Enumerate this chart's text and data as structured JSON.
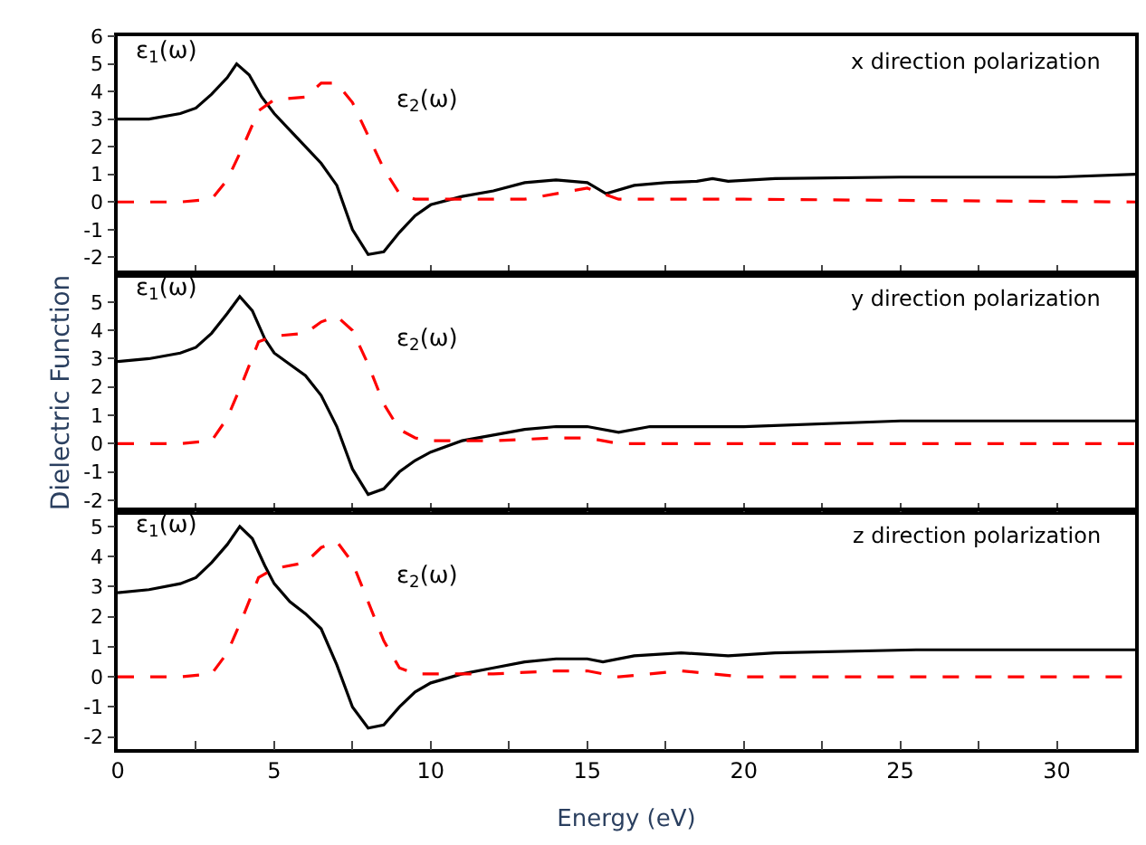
{
  "chart_data": [
    {
      "type": "line",
      "xlim": [
        0,
        32.5
      ],
      "xticks": [
        0,
        {
          "value": 2.5,
          "label": null
        },
        5,
        {
          "value": 7.5,
          "label": null
        },
        10,
        {
          "value": 12.5,
          "label": null
        },
        15,
        {
          "value": 17.5,
          "label": null
        },
        20,
        {
          "value": 22.5,
          "label": null
        },
        25,
        {
          "value": 27.5,
          "label": null
        },
        30
      ],
      "ylim": [
        -2.6,
        6
      ],
      "yticks": [
        -2,
        -1,
        0,
        1,
        2,
        3,
        4,
        5,
        6
      ],
      "tick_labels": "y",
      "grid": false,
      "marker": "none",
      "annotations": [
        "x direction polarization"
      ],
      "series": [
        {
          "name": "ε$_{1}$(ω)",
          "color": "#000000",
          "line_style": "solid",
          "x": [
            0,
            1,
            2,
            2.5,
            3,
            3.5,
            3.8,
            4.2,
            4.6,
            5,
            5.5,
            6,
            6.5,
            7,
            7.5,
            8,
            8.5,
            9,
            9.5,
            10,
            11,
            12,
            13,
            14,
            15,
            15.6,
            16.5,
            17.5,
            18.5,
            19,
            19.5,
            21,
            25,
            30,
            32.5
          ],
          "values": [
            3.0,
            3.0,
            3.2,
            3.4,
            3.9,
            4.5,
            5.0,
            4.6,
            3.8,
            3.2,
            2.6,
            2.0,
            1.4,
            0.6,
            -1.0,
            -1.9,
            -1.8,
            -1.1,
            -0.5,
            -0.1,
            0.2,
            0.4,
            0.7,
            0.8,
            0.7,
            0.3,
            0.6,
            0.7,
            0.75,
            0.85,
            0.75,
            0.85,
            0.9,
            0.9,
            1.0
          ]
        },
        {
          "name": "ε$_{2}$(ω)",
          "color": "#ff0000",
          "line_style": "dashed",
          "x": [
            0,
            2,
            3,
            3.5,
            4,
            4.5,
            5,
            6,
            6.5,
            7,
            7.5,
            8,
            8.5,
            9,
            9.5,
            10,
            12,
            13,
            14,
            15,
            16,
            20,
            32.5
          ],
          "values": [
            0,
            0,
            0.1,
            0.8,
            2.0,
            3.3,
            3.7,
            3.8,
            4.3,
            4.3,
            3.6,
            2.4,
            1.2,
            0.3,
            0.1,
            0.1,
            0.1,
            0.1,
            0.3,
            0.5,
            0.1,
            0.1,
            0.0
          ]
        }
      ]
    },
    {
      "type": "line",
      "xlim": [
        0,
        32.5
      ],
      "xticks": [
        0,
        {
          "value": 2.5,
          "label": null
        },
        5,
        {
          "value": 7.5,
          "label": null
        },
        10,
        {
          "value": 12.5,
          "label": null
        },
        15,
        {
          "value": 17.5,
          "label": null
        },
        20,
        {
          "value": 22.5,
          "label": null
        },
        25,
        {
          "value": 27.5,
          "label": null
        },
        30
      ],
      "ylim": [
        -2.4,
        6
      ],
      "yticks": [
        -2,
        -1,
        0,
        1,
        2,
        3,
        4,
        5
      ],
      "tick_labels": "y",
      "grid": false,
      "marker": "none",
      "ylabel": "Dielectric Function",
      "annotations": [
        "y direction polarization"
      ],
      "series": [
        {
          "name": "ε$_{1}$(ω)",
          "color": "#000000",
          "line_style": "solid",
          "x": [
            0,
            1,
            2,
            2.5,
            3,
            3.5,
            3.9,
            4.3,
            4.7,
            5,
            5.5,
            6,
            6.5,
            7,
            7.5,
            8,
            8.5,
            9,
            9.5,
            10,
            11,
            12,
            13,
            14,
            15,
            16,
            17,
            20,
            25,
            32.5
          ],
          "values": [
            2.9,
            3.0,
            3.2,
            3.4,
            3.9,
            4.6,
            5.2,
            4.7,
            3.7,
            3.2,
            2.8,
            2.4,
            1.7,
            0.6,
            -0.9,
            -1.8,
            -1.6,
            -1.0,
            -0.6,
            -0.3,
            0.1,
            0.3,
            0.5,
            0.6,
            0.6,
            0.4,
            0.6,
            0.6,
            0.8,
            0.8
          ]
        },
        {
          "name": "ε$_{2}$(ω)",
          "color": "#ff0000",
          "line_style": "dashed",
          "x": [
            0,
            2,
            3,
            3.5,
            4,
            4.5,
            5,
            6,
            6.5,
            7,
            7.5,
            8,
            8.5,
            9,
            9.5,
            10,
            12,
            14,
            15,
            16,
            20,
            32.5
          ],
          "values": [
            0,
            0,
            0.1,
            0.9,
            2.2,
            3.6,
            3.8,
            3.9,
            4.3,
            4.5,
            4.0,
            2.8,
            1.4,
            0.5,
            0.2,
            0.1,
            0.1,
            0.2,
            0.2,
            0.0,
            0.0,
            0.0
          ]
        }
      ]
    },
    {
      "type": "line",
      "xlim": [
        0,
        32.5
      ],
      "xticks": [
        0,
        {
          "value": 2.5,
          "label": null
        },
        5,
        {
          "value": 7.5,
          "label": null
        },
        10,
        {
          "value": 12.5,
          "label": null
        },
        15,
        {
          "value": 17.5,
          "label": null
        },
        20,
        {
          "value": 22.5,
          "label": null
        },
        25,
        {
          "value": 27.5,
          "label": null
        },
        30
      ],
      "ylim": [
        -2.4,
        5.5
      ],
      "yticks": [
        -2,
        -1,
        0,
        1,
        2,
        3,
        4,
        5
      ],
      "grid": false,
      "marker": "none",
      "xlabel": "Energy (eV)",
      "annotations": [
        "z direction polarization"
      ],
      "series": [
        {
          "name": "ε$_{1}$(ω)",
          "color": "#000000",
          "line_style": "solid",
          "x": [
            0,
            1,
            2,
            2.5,
            3,
            3.5,
            3.9,
            4.3,
            4.7,
            5,
            5.5,
            6,
            6.5,
            7,
            7.5,
            8,
            8.5,
            9,
            9.5,
            10,
            11,
            12,
            13,
            14,
            15,
            15.5,
            16.5,
            18,
            19.5,
            21,
            25.5,
            32.5
          ],
          "values": [
            2.8,
            2.9,
            3.1,
            3.3,
            3.8,
            4.4,
            5.0,
            4.6,
            3.7,
            3.1,
            2.5,
            2.1,
            1.6,
            0.4,
            -1.0,
            -1.7,
            -1.6,
            -1.0,
            -0.5,
            -0.2,
            0.1,
            0.3,
            0.5,
            0.6,
            0.6,
            0.5,
            0.7,
            0.8,
            0.7,
            0.8,
            0.9,
            0.9
          ]
        },
        {
          "name": "ε$_{2}$(ω)",
          "color": "#ff0000",
          "line_style": "dashed",
          "x": [
            0,
            2,
            3,
            3.5,
            4,
            4.5,
            5,
            6,
            6.5,
            7,
            7.5,
            8,
            8.5,
            9,
            9.5,
            10,
            12,
            14,
            15,
            16,
            18,
            20,
            32.5
          ],
          "values": [
            0,
            0,
            0.1,
            0.8,
            2.0,
            3.3,
            3.6,
            3.8,
            4.3,
            4.5,
            3.8,
            2.5,
            1.2,
            0.3,
            0.1,
            0.1,
            0.1,
            0.2,
            0.2,
            0.0,
            0.2,
            0.0,
            0.0
          ]
        }
      ]
    }
  ]
}
